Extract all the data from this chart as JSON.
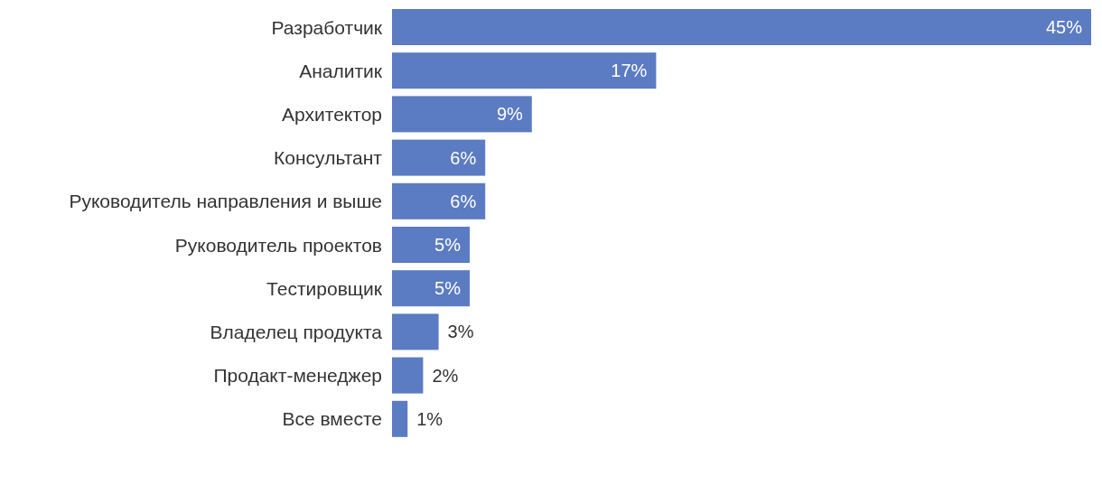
{
  "chart_data": {
    "type": "bar",
    "orientation": "horizontal",
    "categories": [
      "Разработчик",
      "Аналитик",
      "Архитектор",
      "Консультант",
      "Руководитель направления и выше",
      "Руководитель проектов",
      "Тестировщик",
      "Владелец продукта",
      "Продакт-менеджер",
      "Все вместе"
    ],
    "values": [
      45,
      17,
      9,
      6,
      6,
      5,
      5,
      3,
      2,
      1
    ],
    "value_labels": [
      "45%",
      "17%",
      "9%",
      "6%",
      "6%",
      "5%",
      "5%",
      "3%",
      "2%",
      "1%"
    ],
    "color": "#5b7bc2",
    "data_labels": true
  }
}
